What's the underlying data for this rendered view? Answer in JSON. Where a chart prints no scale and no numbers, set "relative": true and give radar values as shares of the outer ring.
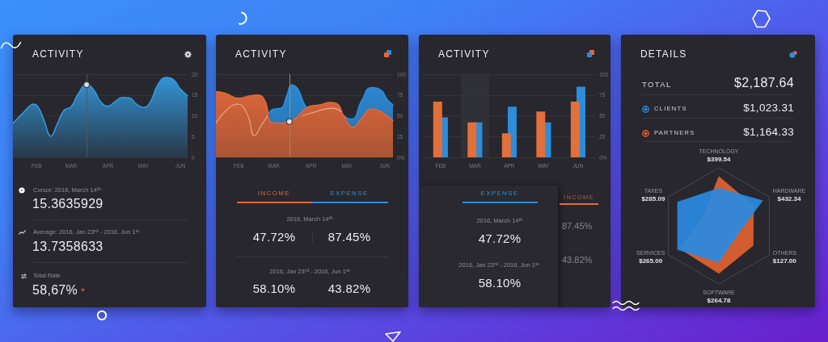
{
  "chart_data": [
    {
      "type": "area",
      "title": "ACTIVITY",
      "x": [
        "2016-01-12",
        "2016-01-20",
        "2016-01-26",
        "2016-01-29",
        "2016-02-02",
        "2016-02-07",
        "2016-02-13",
        "2016-02-18",
        "2016-02-24",
        "2016-03-01",
        "2016-03-07",
        "2016-03-14",
        "2016-03-20",
        "2016-03-26",
        "2016-04-01",
        "2016-04-07",
        "2016-04-13",
        "2016-04-19",
        "2016-04-25",
        "2016-05-01",
        "2016-05-07",
        "2016-05-13",
        "2016-05-20",
        "2016-05-26",
        "2016-06-01",
        "2016-06-07"
      ],
      "series": [
        {
          "color": "#3399dd",
          "values": [
            8.2,
            10.5,
            12.3,
            12.8,
            12.2,
            9.0,
            5.1,
            7.8,
            11.3,
            12.2,
            15.3,
            17.5,
            16.2,
            13.3,
            12.3,
            13.4,
            14.4,
            14.3,
            12.8,
            12.0,
            13.5,
            17.5,
            19.2,
            18.7,
            16.4,
            14.8
          ]
        },
        {
          "type": "scatter",
          "color": "#ffffff",
          "x": [
            "2016-03-14"
          ],
          "values": [
            17.5
          ]
        }
      ],
      "xlim": [
        "2016-01-12",
        "2016-06-07"
      ],
      "xticks": [
        {
          "value": "2016-02-01",
          "label": "FEB"
        },
        {
          "value": "2016-03-01",
          "label": "MAR"
        },
        {
          "value": "2016-04-01",
          "label": "APR"
        },
        {
          "value": "2016-05-01",
          "label": "MAY"
        },
        {
          "value": "2016-06-01",
          "label": "JUN"
        }
      ],
      "ylim": [
        0,
        20
      ],
      "yticks": [
        0,
        5,
        10,
        15,
        20
      ],
      "grid": "y",
      "ref_lines": [
        {
          "axis": "x",
          "value": "2016-03-14",
          "color": "#55555d"
        }
      ],
      "annotations": [
        "Cursor: 2016, March 14$^{th}$",
        "15.3635929",
        "Average: 2016, Jan 23$^{rd}$ - 2016, Jun 1$^{st}$",
        "13.7358633",
        "Total Rate",
        "58,67%"
      ]
    },
    {
      "type": "area",
      "title": "ACTIVITY",
      "x": [
        "2016-01-13",
        "2016-01-21",
        "2016-02-01",
        "2016-02-10",
        "2016-02-17",
        "2016-02-23",
        "2016-02-28",
        "2016-03-07",
        "2016-03-15",
        "2016-03-23",
        "2016-03-30",
        "2016-04-08",
        "2016-04-17",
        "2016-04-23",
        "2016-04-28",
        "2016-05-06",
        "2016-05-13",
        "2016-05-21",
        "2016-05-30",
        "2016-06-08"
      ],
      "series": [
        {
          "name": "INCOME",
          "color": "#e2683a",
          "values": [
            79,
            77,
            71,
            74,
            75,
            67,
            42,
            41,
            43,
            52,
            61,
            63,
            66,
            64,
            50,
            36,
            47,
            58,
            54,
            44
          ]
        },
        {
          "name": "EXPENSE",
          "color": "#2b8ddb",
          "x": [
            "2016-02-26",
            "2016-03-01",
            "2016-03-07",
            "2016-03-12",
            "2016-03-16",
            "2016-03-21",
            "2016-03-26",
            "2016-03-29",
            "2016-04-10",
            "2016-04-25",
            "2016-04-30",
            "2016-05-05",
            "2016-05-13",
            "2016-05-21",
            "2016-05-29",
            "2016-06-03",
            "2016-06-08"
          ],
          "values": [
            53,
            58,
            59,
            75,
            87,
            82,
            65,
            59,
            null,
            56,
            48,
            46,
            68,
            84,
            81,
            70,
            63
          ]
        },
        {
          "type": "line",
          "color": "#e9a088",
          "x": [
            "2016-01-13",
            "2016-01-22",
            "2016-01-31",
            "2016-02-08",
            "2016-02-14",
            "2016-02-20",
            "2016-02-25",
            "2016-03-10",
            "2016-03-25",
            "2016-04-03",
            "2016-04-19",
            "2016-04-26"
          ],
          "values": [
            41,
            57,
            64,
            52,
            26,
            39,
            50,
            null,
            50,
            54,
            59,
            55
          ]
        },
        {
          "type": "scatter",
          "color": "#ffffff",
          "x": [
            "2016-03-14"
          ],
          "values": [
            43
          ]
        }
      ],
      "xlim": [
        "2016-01-13",
        "2016-06-08"
      ],
      "xticks": [
        {
          "value": "2016-02-01",
          "label": "FEB"
        },
        {
          "value": "2016-03-01",
          "label": "MAR"
        },
        {
          "value": "2016-04-01",
          "label": "APR"
        },
        {
          "value": "2016-05-01",
          "label": "MAY"
        },
        {
          "value": "2016-06-01",
          "label": "JUN"
        }
      ],
      "ylim": [
        0,
        100
      ],
      "yticks": [
        {
          "value": 0,
          "label": "0%"
        },
        25,
        50,
        75,
        100
      ],
      "grid": "y",
      "legend": "bottom",
      "ref_lines": [
        {
          "axis": "x",
          "value": "2016-03-14",
          "color": "#a08478"
        }
      ],
      "annotations": [
        "2016, March 14$^{th}$",
        "47.72%",
        "87.45%",
        "2016, Jan 23$^{rd}$ - 2016, Jun 1$^{st}$",
        "58.10%",
        "43.82%"
      ]
    },
    {
      "type": "bar",
      "title": "ACTIVITY",
      "categories": [
        "FEB",
        "MAR",
        "APR",
        "MAY",
        "JUN"
      ],
      "series": [
        {
          "name": "INCOME",
          "color": "#e2703a",
          "values": [
            67,
            42,
            29,
            55,
            67
          ]
        },
        {
          "name": "EXPENSE",
          "color": "#2b8ddb",
          "values": [
            48,
            42,
            61,
            42,
            85
          ]
        }
      ],
      "ylim": [
        0,
        100
      ],
      "yticks": [
        {
          "value": 0,
          "label": "0%"
        },
        25,
        50,
        75,
        100
      ],
      "grid": "y",
      "legend": "bottom",
      "bands": [
        {
          "axis": "x",
          "from": "MAR",
          "to": "MAR",
          "color": "#323238"
        }
      ],
      "annotations": [
        "2016, March 14$^{th}$",
        "47.72%",
        "2016, Jan 23$^{rd}$ - 2016, Jun 1$^{st}$",
        "58.10%",
        "87.45%",
        "43.82%"
      ]
    },
    {
      "type": "radar",
      "title": "DETAILS",
      "categories": [
        "TECHNOLOGY\n$399.54",
        "HARDWARE\n$432.34",
        "OTHERS\n$127.00",
        "SOFTWARE\n$264.78",
        "SERVICES\n$265.00",
        "TAXES\n$285.09"
      ],
      "relative": true,
      "series": [
        {
          "name": "CLIENTS",
          "color": "#2a8ae0",
          "values": [
            0.65,
            0.87,
            0.35,
            0.63,
            0.82,
            0.82
          ]
        },
        {
          "name": "PARTNERS",
          "color": "#e0622f",
          "values": [
            0.85,
            0.69,
            0.68,
            0.82,
            0.78,
            0.31
          ]
        }
      ],
      "legend": "top",
      "annotations": [
        "TOTAL",
        "$2,187.64",
        "$1,023.31",
        "$1,164.33"
      ]
    }
  ]
}
